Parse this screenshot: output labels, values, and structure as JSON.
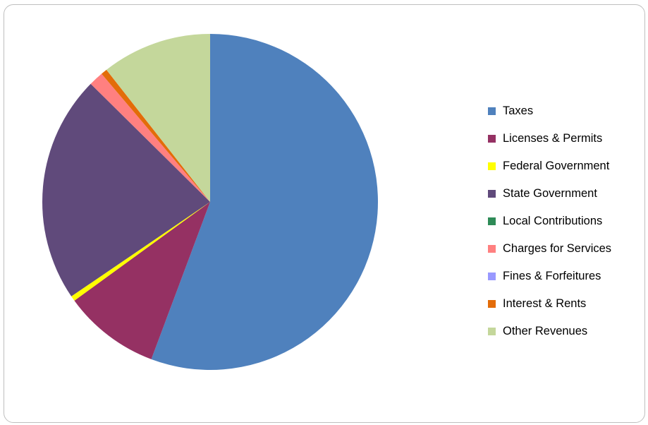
{
  "chart_data": {
    "type": "pie",
    "title": "",
    "slices": [
      {
        "label": "Taxes",
        "value": 55.7,
        "color": "#4f81bd"
      },
      {
        "label": "Licenses & Permits",
        "value": 9.3,
        "color": "#953163"
      },
      {
        "label": "Federal Government",
        "value": 0.5,
        "color": "#ffff00"
      },
      {
        "label": "State Government",
        "value": 21.9,
        "color": "#604a7b"
      },
      {
        "label": "Local Contributions",
        "value": 0.0,
        "color": "#2e8b57"
      },
      {
        "label": "Charges for Services",
        "value": 1.4,
        "color": "#ff8080"
      },
      {
        "label": "Fines & Forfeitures",
        "value": 0.0,
        "color": "#9999ff"
      },
      {
        "label": "Interest & Rents",
        "value": 0.6,
        "color": "#e36c09"
      },
      {
        "label": "Other Revenues",
        "value": 10.6,
        "color": "#c4d79b"
      }
    ],
    "legend_position": "right"
  }
}
